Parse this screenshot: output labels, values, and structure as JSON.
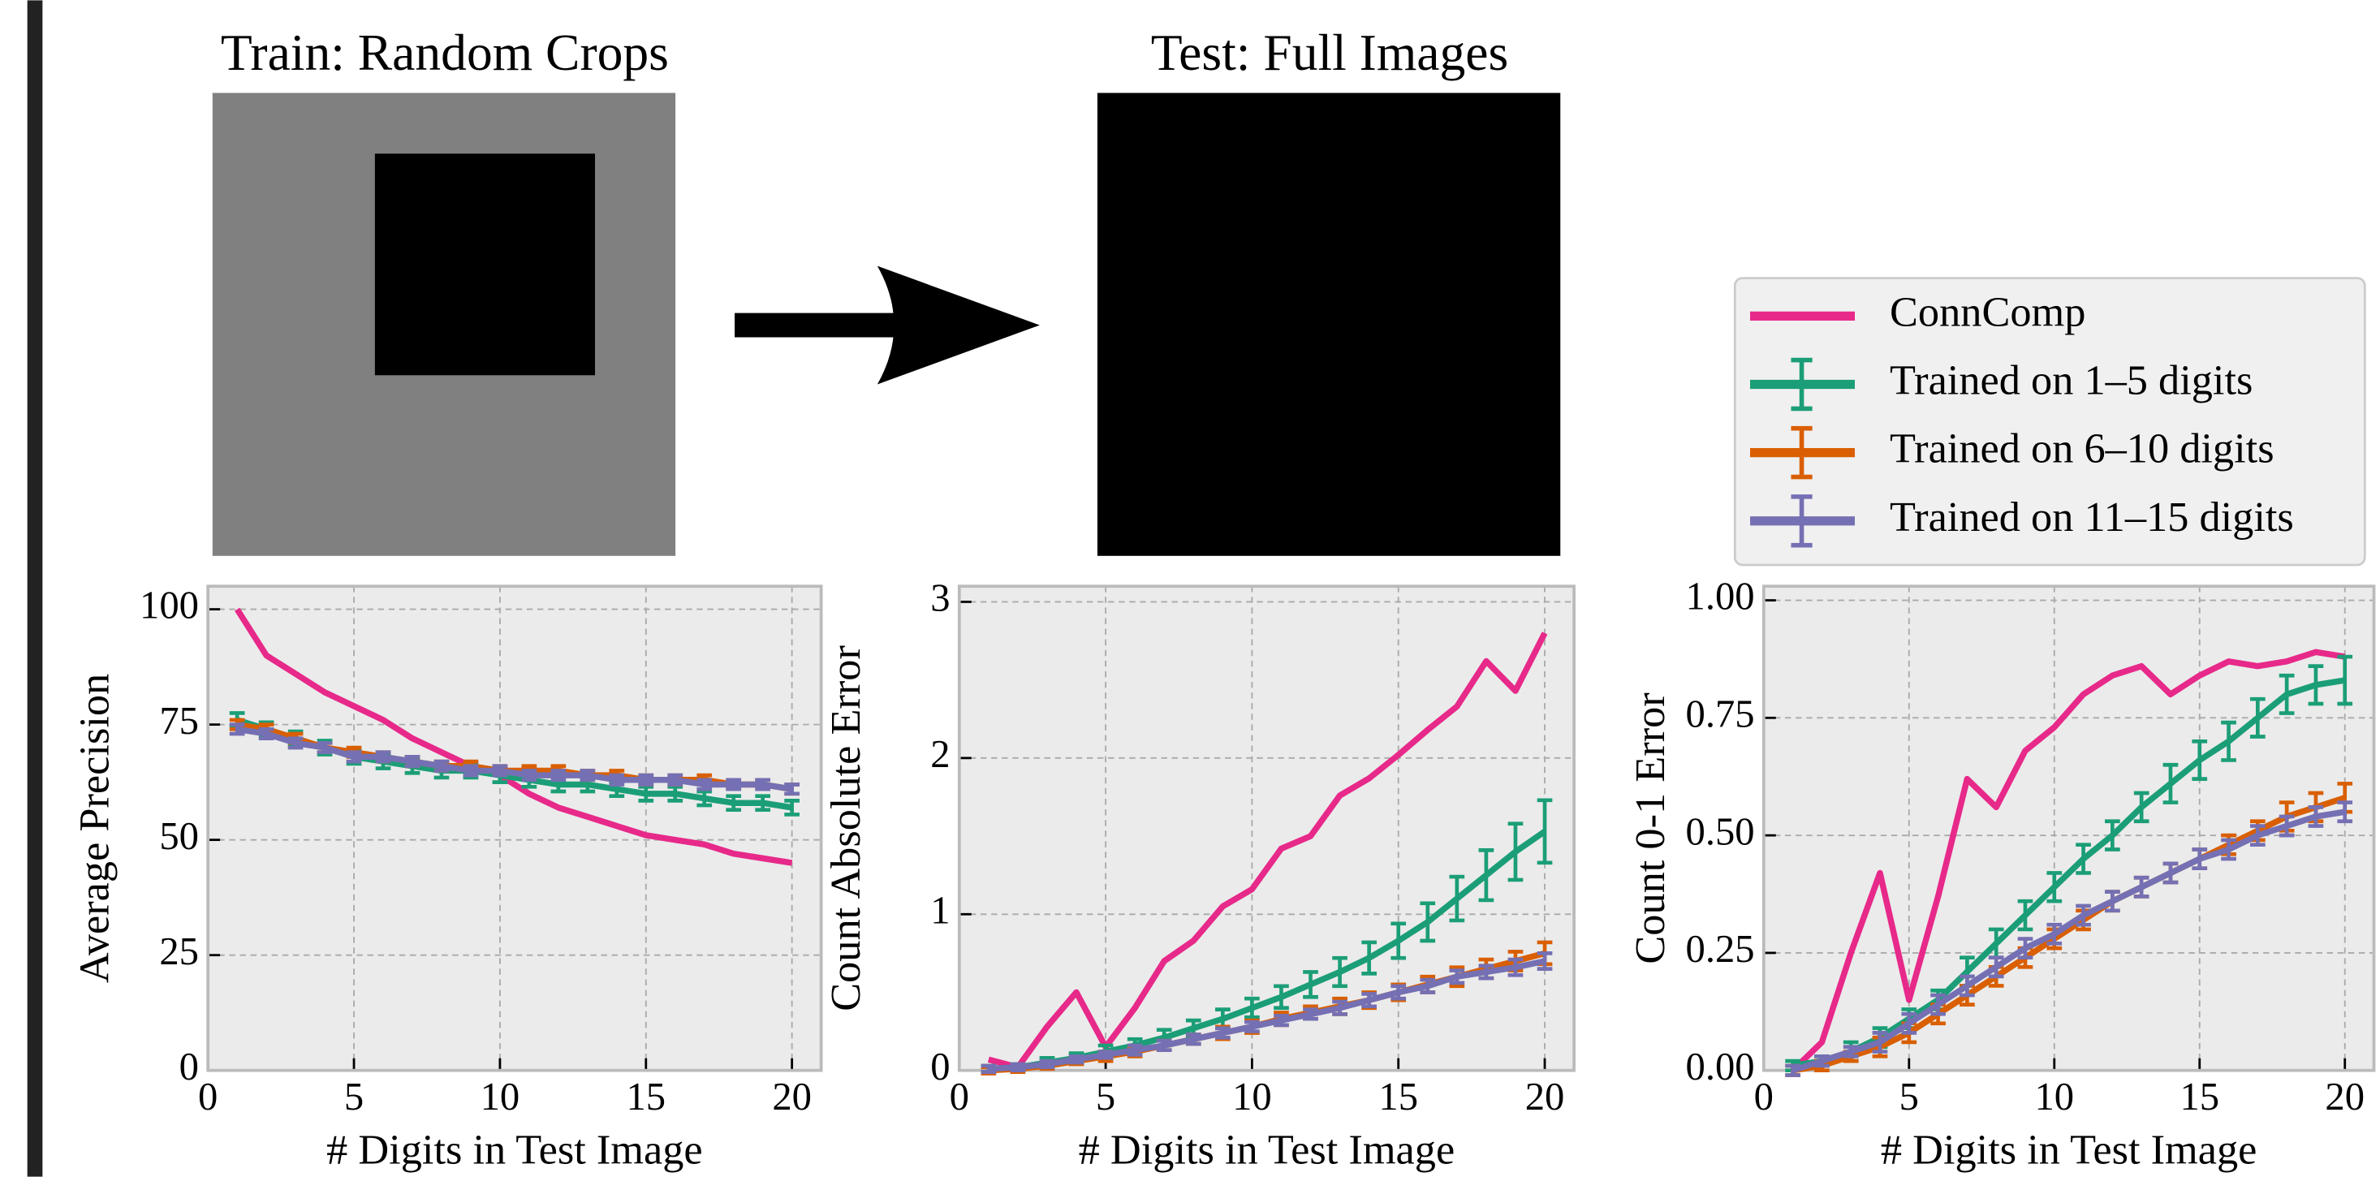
{
  "panels": {
    "train_title": "Train: Random Crops",
    "test_title": "Test: Full Images"
  },
  "chart_data": [
    {
      "type": "line",
      "ylabel": "Average Precision",
      "xlabel": "# Digits in Test Image",
      "x": [
        1,
        2,
        3,
        4,
        5,
        6,
        7,
        8,
        9,
        10,
        11,
        12,
        13,
        14,
        15,
        16,
        17,
        18,
        19,
        20
      ],
      "xlim": [
        0,
        21
      ],
      "xticks": [
        0,
        5,
        10,
        15,
        20
      ],
      "ylim": [
        0,
        105
      ],
      "yticks": [
        0,
        25,
        50,
        75,
        100
      ],
      "grid": true,
      "series": [
        {
          "name": "ConnComp",
          "color": "#e7298a",
          "values": [
            100,
            90,
            86,
            82,
            79,
            76,
            72,
            69,
            66,
            64,
            60,
            57,
            55,
            53,
            51,
            50,
            49,
            47,
            46,
            45
          ]
        },
        {
          "name": "Trained on 1–5 digits",
          "color": "#1b9e77",
          "values": [
            76,
            74,
            72,
            70,
            68,
            67,
            66,
            65,
            65,
            64,
            63,
            62,
            62,
            61,
            60,
            60,
            59,
            58,
            58,
            57
          ],
          "errors": [
            1.5,
            1.5,
            1.5,
            1.5,
            1.5,
            1.5,
            1.5,
            1.5,
            1.5,
            1.5,
            1.5,
            1.5,
            1.5,
            1.5,
            1.5,
            1.5,
            1.5,
            1.5,
            1.5,
            1.5
          ]
        },
        {
          "name": "Trained on 6–10 digits",
          "color": "#d95f02",
          "values": [
            75,
            74,
            72,
            70,
            69,
            68,
            67,
            66,
            66,
            65,
            65,
            65,
            64,
            64,
            63,
            63,
            63,
            62,
            62,
            61
          ],
          "errors": [
            1,
            1,
            1,
            1,
            1,
            1,
            1,
            1,
            1,
            1,
            1,
            1,
            1,
            1,
            1,
            1,
            1,
            1,
            1,
            1
          ]
        },
        {
          "name": "Trained on 11–15 digits",
          "color": "#7570b3",
          "values": [
            74,
            73,
            71,
            70,
            68,
            68,
            67,
            66,
            65,
            65,
            64,
            64,
            64,
            63,
            63,
            63,
            62,
            62,
            62,
            61
          ],
          "errors": [
            1,
            1,
            1,
            1,
            1,
            1,
            1,
            1,
            1,
            1,
            1,
            1,
            1,
            1,
            1,
            1,
            1,
            1,
            1,
            1
          ]
        }
      ]
    },
    {
      "type": "line",
      "ylabel": "Count Absolute Error",
      "xlabel": "# Digits in Test Image",
      "x": [
        1,
        2,
        3,
        4,
        5,
        6,
        7,
        8,
        9,
        10,
        11,
        12,
        13,
        14,
        15,
        16,
        17,
        18,
        19,
        20
      ],
      "xlim": [
        0,
        21
      ],
      "xticks": [
        0,
        5,
        10,
        15,
        20
      ],
      "ylim": [
        0,
        3.1
      ],
      "yticks": [
        0,
        1,
        2,
        3
      ],
      "grid": true,
      "series": [
        {
          "name": "ConnComp",
          "color": "#e7298a",
          "values": [
            0.07,
            0.02,
            0.28,
            0.5,
            0.15,
            0.4,
            0.7,
            0.83,
            1.05,
            1.16,
            1.42,
            1.5,
            1.76,
            1.87,
            2.02,
            2.18,
            2.33,
            2.62,
            2.43,
            2.8
          ]
        },
        {
          "name": "Trained on 1–5 digits",
          "color": "#1b9e77",
          "values": [
            0.01,
            0.02,
            0.05,
            0.08,
            0.12,
            0.16,
            0.21,
            0.27,
            0.33,
            0.4,
            0.47,
            0.55,
            0.63,
            0.72,
            0.83,
            0.95,
            1.1,
            1.25,
            1.4,
            1.53
          ],
          "errors": [
            0.02,
            0.02,
            0.03,
            0.03,
            0.04,
            0.04,
            0.05,
            0.05,
            0.06,
            0.06,
            0.07,
            0.08,
            0.09,
            0.1,
            0.11,
            0.12,
            0.14,
            0.16,
            0.18,
            0.2
          ]
        },
        {
          "name": "Trained on 6–10 digits",
          "color": "#d95f02",
          "values": [
            0.0,
            0.01,
            0.03,
            0.06,
            0.09,
            0.12,
            0.16,
            0.2,
            0.24,
            0.28,
            0.33,
            0.37,
            0.41,
            0.45,
            0.5,
            0.55,
            0.6,
            0.65,
            0.7,
            0.75
          ],
          "errors": [
            0.02,
            0.02,
            0.02,
            0.02,
            0.03,
            0.03,
            0.03,
            0.03,
            0.04,
            0.04,
            0.04,
            0.04,
            0.05,
            0.05,
            0.05,
            0.05,
            0.06,
            0.06,
            0.06,
            0.07
          ]
        },
        {
          "name": "Trained on 11–15 digits",
          "color": "#7570b3",
          "values": [
            0.01,
            0.02,
            0.04,
            0.07,
            0.1,
            0.13,
            0.16,
            0.2,
            0.24,
            0.28,
            0.32,
            0.36,
            0.4,
            0.45,
            0.5,
            0.54,
            0.6,
            0.63,
            0.66,
            0.7
          ],
          "errors": [
            0.02,
            0.02,
            0.02,
            0.02,
            0.02,
            0.03,
            0.03,
            0.03,
            0.03,
            0.03,
            0.03,
            0.03,
            0.04,
            0.04,
            0.04,
            0.04,
            0.04,
            0.04,
            0.05,
            0.05
          ]
        }
      ]
    },
    {
      "type": "line",
      "ylabel": "Count 0-1 Error",
      "xlabel": "# Digits in Test Image",
      "x": [
        1,
        2,
        3,
        4,
        5,
        6,
        7,
        8,
        9,
        10,
        11,
        12,
        13,
        14,
        15,
        16,
        17,
        18,
        19,
        20
      ],
      "xlim": [
        0,
        21
      ],
      "xticks": [
        0,
        5,
        10,
        15,
        20
      ],
      "ylim": [
        0,
        1.03
      ],
      "yticks": [
        {
          "value": 0,
          "label": "0.00"
        },
        {
          "value": 0.25,
          "label": "0.25"
        },
        {
          "value": 0.5,
          "label": "0.50"
        },
        {
          "value": 0.75,
          "label": "0.75"
        },
        {
          "value": 1,
          "label": "1.00"
        }
      ],
      "grid": true,
      "legend": "above",
      "series": [
        {
          "name": "ConnComp",
          "color": "#e7298a",
          "values": [
            0.0,
            0.06,
            0.25,
            0.42,
            0.15,
            0.37,
            0.62,
            0.56,
            0.68,
            0.73,
            0.8,
            0.84,
            0.86,
            0.8,
            0.84,
            0.87,
            0.86,
            0.87,
            0.89,
            0.88
          ]
        },
        {
          "name": "Trained on 1–5 digits",
          "color": "#1b9e77",
          "values": [
            0.01,
            0.02,
            0.04,
            0.07,
            0.11,
            0.15,
            0.21,
            0.27,
            0.33,
            0.39,
            0.45,
            0.5,
            0.56,
            0.61,
            0.66,
            0.7,
            0.75,
            0.8,
            0.82,
            0.83
          ],
          "errors": [
            0.01,
            0.01,
            0.02,
            0.02,
            0.02,
            0.02,
            0.03,
            0.03,
            0.03,
            0.03,
            0.03,
            0.03,
            0.03,
            0.04,
            0.04,
            0.04,
            0.04,
            0.04,
            0.04,
            0.05
          ]
        },
        {
          "name": "Trained on 6–10 digits",
          "color": "#d95f02",
          "values": [
            0.0,
            0.01,
            0.03,
            0.05,
            0.08,
            0.12,
            0.16,
            0.2,
            0.24,
            0.28,
            0.32,
            0.36,
            0.39,
            0.42,
            0.45,
            0.48,
            0.51,
            0.54,
            0.56,
            0.58
          ],
          "errors": [
            0.01,
            0.01,
            0.01,
            0.02,
            0.02,
            0.02,
            0.02,
            0.02,
            0.02,
            0.02,
            0.02,
            0.02,
            0.02,
            0.02,
            0.02,
            0.02,
            0.02,
            0.03,
            0.03,
            0.03
          ]
        },
        {
          "name": "Trained on 11–15 digits",
          "color": "#7570b3",
          "values": [
            0.0,
            0.02,
            0.04,
            0.06,
            0.1,
            0.14,
            0.18,
            0.22,
            0.26,
            0.29,
            0.33,
            0.36,
            0.39,
            0.42,
            0.45,
            0.47,
            0.5,
            0.52,
            0.54,
            0.55
          ],
          "errors": [
            0.01,
            0.01,
            0.01,
            0.02,
            0.02,
            0.02,
            0.02,
            0.02,
            0.02,
            0.02,
            0.02,
            0.02,
            0.02,
            0.02,
            0.02,
            0.02,
            0.02,
            0.02,
            0.02,
            0.02
          ]
        }
      ]
    }
  ]
}
